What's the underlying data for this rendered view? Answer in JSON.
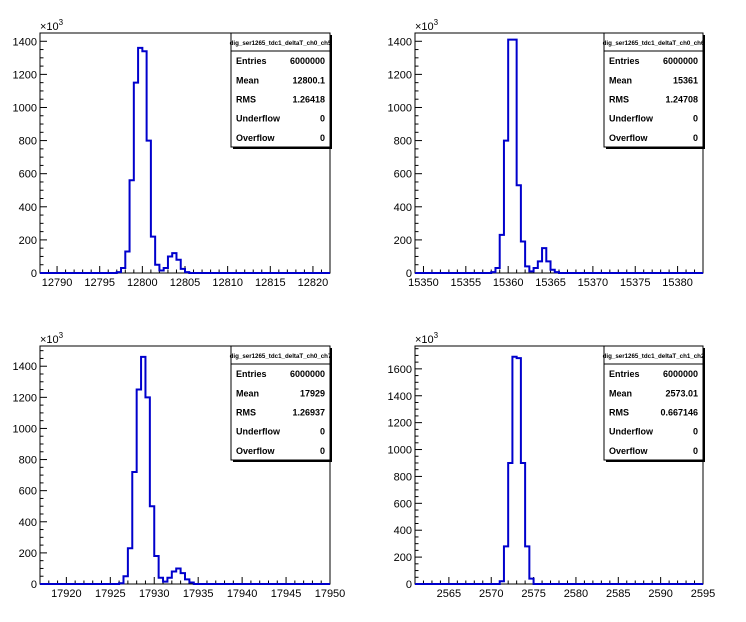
{
  "chart_data": [
    {
      "type": "bar",
      "histogram_name": "dig_ser1265_tdc1_deltaT_ch0_ch5",
      "stats": [
        {
          "label": "Entries",
          "value": "6000000"
        },
        {
          "label": "Mean",
          "value": "12800.1"
        },
        {
          "label": "RMS",
          "value": "1.26418"
        },
        {
          "label": "Underflow",
          "value": "0"
        },
        {
          "label": "Overflow",
          "value": "0"
        }
      ],
      "y_multiplier": "×10",
      "y_multiplier_exp": "3",
      "xlim": [
        12788,
        12822
      ],
      "ylim": [
        0,
        1450
      ],
      "bin_width": 0.5,
      "x_ticks": [
        "12790",
        "12795",
        "12800",
        "12805",
        "12810",
        "12815",
        "12820"
      ],
      "y_ticks": [
        "0",
        "200",
        "400",
        "600",
        "800",
        "1000",
        "1200",
        "1400"
      ],
      "bins": [
        [
          12797.0,
          12797.5,
          5
        ],
        [
          12797.5,
          12798.0,
          30
        ],
        [
          12798.0,
          12798.5,
          130
        ],
        [
          12798.5,
          12799.0,
          560
        ],
        [
          12799.0,
          12799.5,
          1150
        ],
        [
          12799.5,
          12800.0,
          1360
        ],
        [
          12800.0,
          12800.5,
          1340
        ],
        [
          12800.5,
          12801.0,
          800
        ],
        [
          12801.0,
          12801.5,
          220
        ],
        [
          12801.5,
          12802.0,
          50
        ],
        [
          12802.0,
          12802.5,
          15
        ],
        [
          12802.5,
          12803.0,
          30
        ],
        [
          12803.0,
          12803.5,
          100
        ],
        [
          12803.5,
          12804.0,
          120
        ],
        [
          12804.0,
          12804.5,
          80
        ],
        [
          12804.5,
          12805.0,
          25
        ],
        [
          12805.0,
          12805.5,
          5
        ]
      ]
    },
    {
      "type": "bar",
      "histogram_name": "dig_ser1265_tdc1_deltaT_ch0_ch6",
      "stats": [
        {
          "label": "Entries",
          "value": "6000000"
        },
        {
          "label": "Mean",
          "value": "15361"
        },
        {
          "label": "RMS",
          "value": "1.24708"
        },
        {
          "label": "Underflow",
          "value": "0"
        },
        {
          "label": "Overflow",
          "value": "0"
        }
      ],
      "y_multiplier": "×10",
      "y_multiplier_exp": "3",
      "xlim": [
        15349,
        15383
      ],
      "ylim": [
        0,
        1450
      ],
      "bin_width": 0.5,
      "x_ticks": [
        "15350",
        "15355",
        "15360",
        "15365",
        "15370",
        "15375",
        "15380"
      ],
      "y_ticks": [
        "0",
        "200",
        "400",
        "600",
        "800",
        "1000",
        "1200",
        "1400"
      ],
      "bins": [
        [
          15358.0,
          15358.5,
          5
        ],
        [
          15358.5,
          15359.0,
          30
        ],
        [
          15359.0,
          15359.5,
          230
        ],
        [
          15359.5,
          15360.0,
          800
        ],
        [
          15360.0,
          15360.5,
          1410
        ],
        [
          15360.5,
          15361.0,
          1410
        ],
        [
          15361.0,
          15361.5,
          530
        ],
        [
          15361.5,
          15362.0,
          190
        ],
        [
          15362.0,
          15362.5,
          40
        ],
        [
          15362.5,
          15363.0,
          10
        ],
        [
          15363.0,
          15363.5,
          30
        ],
        [
          15363.5,
          15364.0,
          70
        ],
        [
          15364.0,
          15364.5,
          150
        ],
        [
          15364.5,
          15365.0,
          70
        ],
        [
          15365.0,
          15365.5,
          20
        ],
        [
          15365.5,
          15366.0,
          5
        ]
      ]
    },
    {
      "type": "bar",
      "histogram_name": "dig_ser1265_tdc1_deltaT_ch0_ch7",
      "stats": [
        {
          "label": "Entries",
          "value": "6000000"
        },
        {
          "label": "Mean",
          "value": "17929"
        },
        {
          "label": "RMS",
          "value": "1.26937"
        },
        {
          "label": "Underflow",
          "value": "0"
        },
        {
          "label": "Overflow",
          "value": "0"
        }
      ],
      "y_multiplier": "×10",
      "y_multiplier_exp": "3",
      "xlim": [
        17917,
        17950
      ],
      "ylim": [
        0,
        1530
      ],
      "bin_width": 0.5,
      "x_ticks": [
        "17920",
        "17925",
        "17930",
        "17935",
        "17940",
        "17945",
        "17950"
      ],
      "y_ticks": [
        "0",
        "200",
        "400",
        "600",
        "800",
        "1000",
        "1200",
        "1400"
      ],
      "bins": [
        [
          17926.0,
          17926.5,
          5
        ],
        [
          17926.5,
          17927.0,
          50
        ],
        [
          17927.0,
          17927.5,
          230
        ],
        [
          17927.5,
          17928.0,
          720
        ],
        [
          17928.0,
          17928.5,
          1250
        ],
        [
          17928.5,
          17929.0,
          1460
        ],
        [
          17929.0,
          17929.5,
          1200
        ],
        [
          17929.5,
          17930.0,
          500
        ],
        [
          17930.0,
          17930.5,
          180
        ],
        [
          17930.5,
          17931.0,
          40
        ],
        [
          17931.0,
          17931.5,
          15
        ],
        [
          17931.5,
          17932.0,
          40
        ],
        [
          17932.0,
          17932.5,
          80
        ],
        [
          17932.5,
          17933.0,
          100
        ],
        [
          17933.0,
          17933.5,
          70
        ],
        [
          17933.5,
          17934.0,
          30
        ],
        [
          17934.0,
          17934.5,
          10
        ]
      ]
    },
    {
      "type": "bar",
      "histogram_name": "dig_ser1265_tdc1_deltaT_ch1_ch2",
      "stats": [
        {
          "label": "Entries",
          "value": "6000000"
        },
        {
          "label": "Mean",
          "value": "2573.01"
        },
        {
          "label": "RMS",
          "value": "0.667146"
        },
        {
          "label": "Underflow",
          "value": "0"
        },
        {
          "label": "Overflow",
          "value": "0"
        }
      ],
      "y_multiplier": "×10",
      "y_multiplier_exp": "3",
      "xlim": [
        2561,
        2595
      ],
      "ylim": [
        0,
        1770
      ],
      "bin_width": 0.5,
      "x_ticks": [
        "2565",
        "2570",
        "2575",
        "2580",
        "2585",
        "2590",
        "2595"
      ],
      "y_ticks": [
        "0",
        "200",
        "400",
        "600",
        "800",
        "1000",
        "1200",
        "1400",
        "1600"
      ],
      "bins": [
        [
          2571.0,
          2571.5,
          20
        ],
        [
          2571.5,
          2572.0,
          280
        ],
        [
          2572.0,
          2572.5,
          900
        ],
        [
          2572.5,
          2573.0,
          1690
        ],
        [
          2573.0,
          2573.5,
          1680
        ],
        [
          2573.5,
          2574.0,
          900
        ],
        [
          2574.0,
          2574.5,
          280
        ],
        [
          2574.5,
          2575.0,
          40
        ]
      ]
    }
  ]
}
